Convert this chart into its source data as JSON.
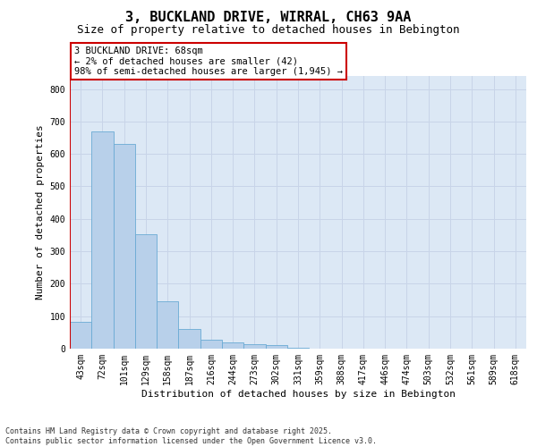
{
  "title_line1": "3, BUCKLAND DRIVE, WIRRAL, CH63 9AA",
  "title_line2": "Size of property relative to detached houses in Bebington",
  "xlabel": "Distribution of detached houses by size in Bebington",
  "ylabel": "Number of detached properties",
  "categories": [
    "43sqm",
    "72sqm",
    "101sqm",
    "129sqm",
    "158sqm",
    "187sqm",
    "216sqm",
    "244sqm",
    "273sqm",
    "302sqm",
    "331sqm",
    "359sqm",
    "388sqm",
    "417sqm",
    "446sqm",
    "474sqm",
    "503sqm",
    "532sqm",
    "561sqm",
    "589sqm",
    "618sqm"
  ],
  "values": [
    83,
    670,
    632,
    352,
    147,
    60,
    27,
    20,
    15,
    10,
    4,
    1,
    0,
    0,
    0,
    0,
    0,
    0,
    0,
    0,
    0
  ],
  "bar_color": "#b8d0ea",
  "bar_edge_color": "#6aaad4",
  "vline_color": "#cc0000",
  "annotation_text": "3 BUCKLAND DRIVE: 68sqm\n← 2% of detached houses are smaller (42)\n98% of semi-detached houses are larger (1,945) →",
  "annotation_box_color": "#ffffff",
  "annotation_box_edge_color": "#cc0000",
  "ylim": [
    0,
    840
  ],
  "yticks": [
    0,
    100,
    200,
    300,
    400,
    500,
    600,
    700,
    800
  ],
  "grid_color": "#c8d4e8",
  "background_color": "#dce8f5",
  "footer_text": "Contains HM Land Registry data © Crown copyright and database right 2025.\nContains public sector information licensed under the Open Government Licence v3.0.",
  "title_fontsize": 11,
  "subtitle_fontsize": 9,
  "axis_label_fontsize": 8,
  "tick_fontsize": 7,
  "annotation_fontsize": 7.5,
  "footer_fontsize": 6
}
